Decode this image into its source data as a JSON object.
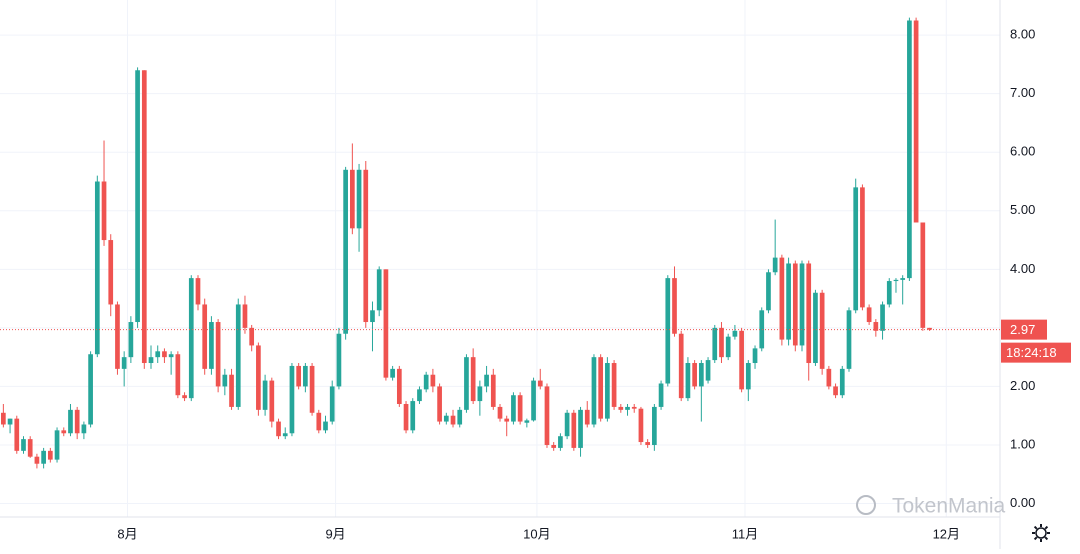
{
  "chart_data": {
    "type": "candlestick",
    "up_color": "#26a69a",
    "down_color": "#ef5350",
    "grid": true,
    "xlim": [
      0,
      149
    ],
    "xticks": [
      {
        "value": 19,
        "label": "8月"
      },
      {
        "value": 50,
        "label": "9月"
      },
      {
        "value": 80,
        "label": "10月"
      },
      {
        "value": 111,
        "label": "11月"
      },
      {
        "value": 141,
        "label": "12月"
      }
    ],
    "ylim": [
      -0.23,
      8.6
    ],
    "yticks": [
      {
        "value": 0,
        "label": "0.00"
      },
      {
        "value": 1,
        "label": "1.00"
      },
      {
        "value": 2,
        "label": "2.00"
      },
      {
        "value": 3,
        "label": "3.00"
      },
      {
        "value": 4,
        "label": "4.00"
      },
      {
        "value": 5,
        "label": "5.00"
      },
      {
        "value": 6,
        "label": "6.00"
      },
      {
        "value": 7,
        "label": "7.00"
      },
      {
        "value": 8,
        "label": "8.00"
      }
    ],
    "open": [
      1.55,
      1.35,
      1.45,
      0.9,
      1.1,
      0.8,
      0.68,
      0.9,
      0.75,
      1.25,
      1.2,
      1.6,
      1.2,
      1.35,
      2.55,
      5.5,
      4.5,
      3.4,
      2.3,
      2.5,
      3.1,
      7.4,
      2.4,
      2.5,
      2.6,
      2.5,
      2.55,
      1.85,
      1.8,
      3.85,
      3.4,
      2.3,
      3.1,
      2.0,
      2.2,
      1.65,
      3.4,
      3.0,
      2.7,
      1.6,
      2.1,
      1.4,
      1.15,
      1.2,
      2.35,
      2.0,
      2.35,
      1.55,
      1.25,
      1.4,
      2.0,
      2.9,
      5.7,
      4.7,
      5.7,
      3.1,
      3.3,
      4.0,
      2.15,
      2.3,
      1.7,
      1.25,
      1.75,
      1.95,
      2.2,
      2.0,
      1.4,
      1.5,
      1.35,
      1.6,
      2.5,
      1.75,
      2.0,
      2.2,
      1.65,
      1.45,
      1.4,
      1.85,
      1.38,
      1.42,
      2.1,
      2.0,
      1.0,
      0.95,
      1.15,
      1.55,
      0.95,
      1.6,
      1.35,
      2.5,
      1.45,
      2.4,
      1.65,
      1.6,
      1.65,
      1.62,
      1.05,
      1.0,
      1.65,
      2.05,
      3.85,
      2.9,
      1.8,
      2.4,
      2.0,
      2.1,
      2.45,
      3.0,
      2.5,
      2.85,
      2.95,
      1.95,
      2.4,
      2.65,
      3.3,
      3.95,
      4.2,
      2.8,
      4.1,
      2.7,
      4.1,
      2.4,
      3.6,
      2.3,
      2.0,
      1.85,
      2.3,
      3.3,
      5.4,
      3.35,
      3.1,
      2.95,
      3.4,
      3.8,
      3.82,
      3.85,
      8.25,
      4.8,
      3.0
    ],
    "high": [
      1.7,
      1.45,
      1.5,
      1.15,
      1.15,
      0.85,
      0.95,
      0.95,
      1.3,
      1.3,
      1.7,
      1.65,
      1.4,
      2.6,
      5.6,
      6.2,
      4.6,
      3.45,
      2.6,
      3.2,
      7.45,
      7.4,
      2.7,
      2.7,
      2.65,
      2.6,
      2.6,
      1.9,
      3.9,
      3.9,
      3.5,
      3.2,
      3.15,
      2.3,
      2.3,
      3.5,
      3.55,
      3.05,
      2.75,
      2.2,
      2.15,
      1.45,
      1.3,
      2.4,
      2.4,
      2.4,
      2.4,
      1.6,
      1.5,
      2.1,
      3.0,
      5.75,
      6.15,
      5.8,
      5.85,
      3.45,
      4.05,
      4.0,
      2.35,
      2.35,
      1.75,
      1.8,
      2.0,
      2.25,
      2.3,
      2.05,
      1.55,
      1.6,
      1.65,
      2.55,
      2.65,
      2.1,
      2.35,
      2.3,
      1.7,
      1.5,
      1.9,
      1.9,
      1.45,
      2.15,
      2.3,
      2.05,
      1.05,
      1.2,
      1.6,
      1.6,
      1.65,
      1.75,
      2.55,
      2.55,
      2.5,
      2.45,
      1.7,
      1.7,
      1.7,
      1.65,
      1.1,
      1.7,
      2.1,
      3.9,
      4.05,
      2.95,
      2.5,
      2.45,
      2.45,
      2.5,
      3.05,
      3.1,
      2.9,
      3.05,
      3.0,
      2.45,
      2.7,
      3.35,
      4.0,
      4.85,
      4.25,
      4.2,
      4.15,
      4.15,
      4.15,
      3.65,
      3.65,
      2.35,
      2.05,
      2.35,
      3.35,
      5.55,
      5.45,
      3.4,
      3.15,
      3.45,
      3.85,
      3.85,
      3.9,
      8.3,
      8.3,
      4.8,
      3.0
    ],
    "low": [
      1.3,
      1.2,
      0.85,
      0.85,
      0.78,
      0.6,
      0.6,
      0.7,
      0.7,
      1.15,
      1.15,
      1.1,
      1.1,
      1.3,
      2.5,
      4.4,
      3.2,
      2.2,
      2.0,
      2.4,
      3.0,
      2.3,
      2.3,
      2.4,
      2.4,
      2.2,
      1.8,
      1.75,
      1.75,
      3.3,
      2.2,
      2.2,
      1.9,
      1.85,
      1.6,
      1.6,
      2.9,
      2.6,
      1.5,
      1.5,
      1.3,
      1.1,
      1.1,
      1.15,
      1.95,
      1.9,
      1.5,
      1.2,
      1.2,
      1.35,
      1.95,
      2.8,
      4.6,
      4.3,
      3.0,
      2.6,
      3.2,
      2.1,
      2.1,
      1.65,
      1.2,
      1.2,
      1.7,
      1.9,
      1.9,
      1.35,
      1.35,
      1.3,
      1.3,
      1.55,
      1.7,
      1.5,
      1.9,
      1.6,
      1.4,
      1.15,
      1.35,
      1.35,
      1.3,
      1.4,
      1.95,
      0.95,
      0.9,
      0.9,
      1.1,
      0.9,
      0.8,
      1.3,
      1.3,
      1.4,
      1.4,
      1.6,
      1.55,
      1.5,
      1.55,
      1.0,
      0.95,
      0.9,
      1.6,
      2.0,
      2.85,
      1.75,
      1.75,
      1.95,
      1.4,
      2.05,
      2.4,
      2.4,
      2.45,
      2.8,
      1.9,
      1.75,
      2.3,
      2.6,
      3.25,
      3.9,
      2.7,
      2.7,
      2.6,
      2.6,
      2.1,
      2.35,
      2.2,
      1.95,
      1.8,
      1.8,
      2.25,
      3.25,
      3.3,
      3.05,
      2.85,
      2.8,
      3.35,
      3.6,
      3.4,
      3.8,
      4.8,
      2.95,
      2.95
    ],
    "close": [
      1.35,
      1.45,
      0.9,
      1.1,
      0.8,
      0.68,
      0.9,
      0.75,
      1.25,
      1.2,
      1.6,
      1.2,
      1.35,
      2.55,
      5.5,
      4.5,
      3.4,
      2.3,
      2.5,
      3.1,
      7.4,
      2.4,
      2.5,
      2.6,
      2.5,
      2.55,
      1.85,
      1.8,
      3.85,
      3.4,
      2.3,
      3.1,
      2.0,
      2.2,
      1.65,
      3.4,
      3.0,
      2.7,
      1.6,
      2.1,
      1.4,
      1.15,
      1.2,
      2.35,
      2.0,
      2.35,
      1.55,
      1.25,
      1.4,
      2.0,
      2.9,
      5.7,
      4.7,
      5.7,
      3.1,
      3.3,
      4.0,
      2.15,
      2.3,
      1.7,
      1.25,
      1.75,
      1.95,
      2.2,
      2.0,
      1.4,
      1.5,
      1.35,
      1.6,
      2.5,
      1.75,
      2.0,
      2.2,
      1.65,
      1.45,
      1.4,
      1.85,
      1.4,
      1.42,
      2.1,
      2.0,
      1.0,
      0.95,
      1.15,
      1.55,
      0.95,
      1.6,
      1.35,
      2.5,
      1.45,
      2.4,
      1.65,
      1.6,
      1.65,
      1.62,
      1.05,
      1.0,
      1.65,
      2.05,
      3.85,
      2.9,
      1.8,
      2.4,
      2.0,
      2.4,
      2.45,
      3.0,
      2.5,
      2.85,
      2.95,
      1.95,
      2.4,
      2.65,
      3.3,
      3.95,
      4.2,
      2.8,
      4.1,
      2.7,
      4.1,
      2.4,
      3.6,
      2.3,
      2.0,
      1.85,
      2.3,
      3.3,
      5.4,
      3.35,
      3.1,
      2.95,
      3.4,
      3.8,
      3.82,
      3.85,
      8.25,
      4.8,
      3.0,
      2.97
    ],
    "last_price": 2.97,
    "countdown": "18:24:18",
    "watermark": "TokenMania"
  }
}
